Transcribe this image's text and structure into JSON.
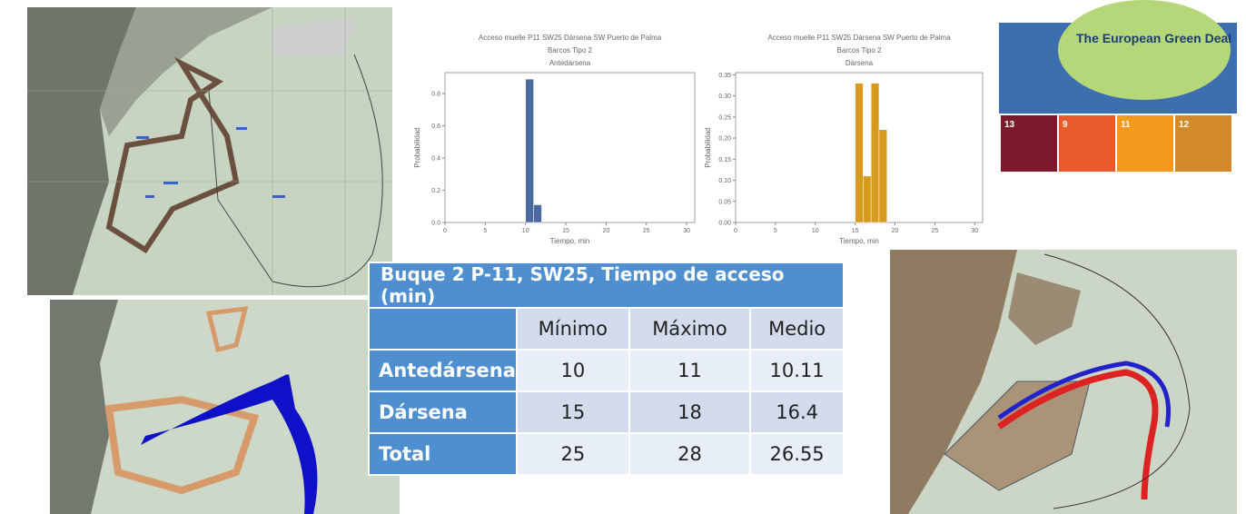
{
  "chart_data": [
    {
      "type": "histogram",
      "title": "Acceso muelle P11 SW25 Dársena SW Puerto de Palma",
      "subtitle": "Barcos Tipo 2",
      "panel_label": "Antedársena",
      "x_label": "Tiempo, min",
      "y_label": "Probabilidad",
      "color": "#4a6aa0",
      "bins": [
        10,
        11,
        12
      ],
      "values": [
        0.89,
        0.11
      ],
      "xlim": [
        0,
        31
      ],
      "xticks": [
        0,
        5,
        10,
        15,
        20,
        25,
        30
      ],
      "ylim": [
        0,
        0.93
      ],
      "yticks": [
        {
          "value": 0,
          "label": "0.0"
        },
        0.2,
        0.4,
        0.6,
        0.8
      ]
    },
    {
      "type": "histogram",
      "title": "Acceso muelle P11 SW25 Dársena SW Puerto de Palma",
      "subtitle": "Barcos Tipo 2",
      "panel_label": "Dársena",
      "x_label": "Tiempo, min",
      "y_label": "Probabilidad",
      "color": "#d89a1e",
      "bins": [
        15,
        16,
        17,
        18,
        19
      ],
      "values": [
        0.33,
        0.11,
        0.33,
        0.22
      ],
      "xlim": [
        0,
        31
      ],
      "xticks": [
        0,
        5,
        10,
        15,
        20,
        25,
        30
      ],
      "ylim": [
        0,
        0.355
      ],
      "yticks": [
        {
          "value": 0,
          "label": "0.00"
        },
        0.05,
        {
          "value": 0.1,
          "label": "0.10"
        },
        0.15,
        {
          "value": 0.2,
          "label": "0.20"
        },
        0.25,
        {
          "value": 0.3,
          "label": "0.30"
        },
        0.35
      ]
    }
  ],
  "table": {
    "title": "Buque 2  P-11,  SW25, Tiempo de acceso (min)",
    "columns": [
      "Mínimo",
      "Máximo",
      "Medio"
    ],
    "rows": [
      {
        "label": "Antedársena",
        "cells": [
          10,
          11,
          10.11
        ]
      },
      {
        "label": "Dársena",
        "cells": [
          15,
          18,
          16.4
        ]
      },
      {
        "label": "Total",
        "cells": [
          25,
          28,
          26.55
        ]
      }
    ]
  },
  "logo": {
    "title": "The European Green Deal",
    "goals": [
      "13",
      "9",
      "11",
      "12"
    ]
  }
}
